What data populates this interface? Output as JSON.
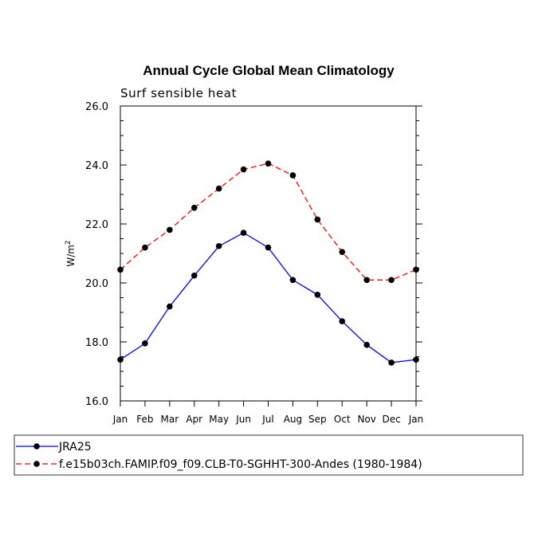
{
  "chart_data": {
    "type": "line",
    "title": "Annual Cycle Global Mean Climatology",
    "subtitle": "Surf sensible heat",
    "ylabel": "W/m",
    "ylabel_sup": "2",
    "xlabel": "",
    "ylim": [
      16.0,
      26.0
    ],
    "y_ticks": [
      "16.0",
      "18.0",
      "20.0",
      "22.0",
      "24.0",
      "26.0"
    ],
    "categories": [
      "Jan",
      "Feb",
      "Mar",
      "Apr",
      "May",
      "Jun",
      "Jul",
      "Aug",
      "Sep",
      "Oct",
      "Nov",
      "Dec",
      "Jan"
    ],
    "grid": false,
    "legend_position": "bottom",
    "series": [
      {
        "name": "JRA25",
        "color": "#0000ff",
        "line_style": "solid",
        "marker": "circle",
        "values": [
          17.4,
          17.95,
          19.2,
          20.25,
          21.25,
          21.7,
          21.2,
          20.1,
          19.6,
          18.7,
          17.9,
          17.3,
          17.4
        ]
      },
      {
        "name": "f.e15b03ch.FAMIP.f09_f09.CLB-T0-SGHHT-300-Andes (1980-1984)",
        "color": "#ff0000",
        "line_style": "dashed",
        "marker": "circle",
        "values": [
          20.45,
          21.2,
          21.8,
          22.55,
          23.2,
          23.85,
          24.05,
          23.65,
          22.15,
          21.05,
          20.1,
          20.1,
          20.45
        ]
      }
    ]
  }
}
